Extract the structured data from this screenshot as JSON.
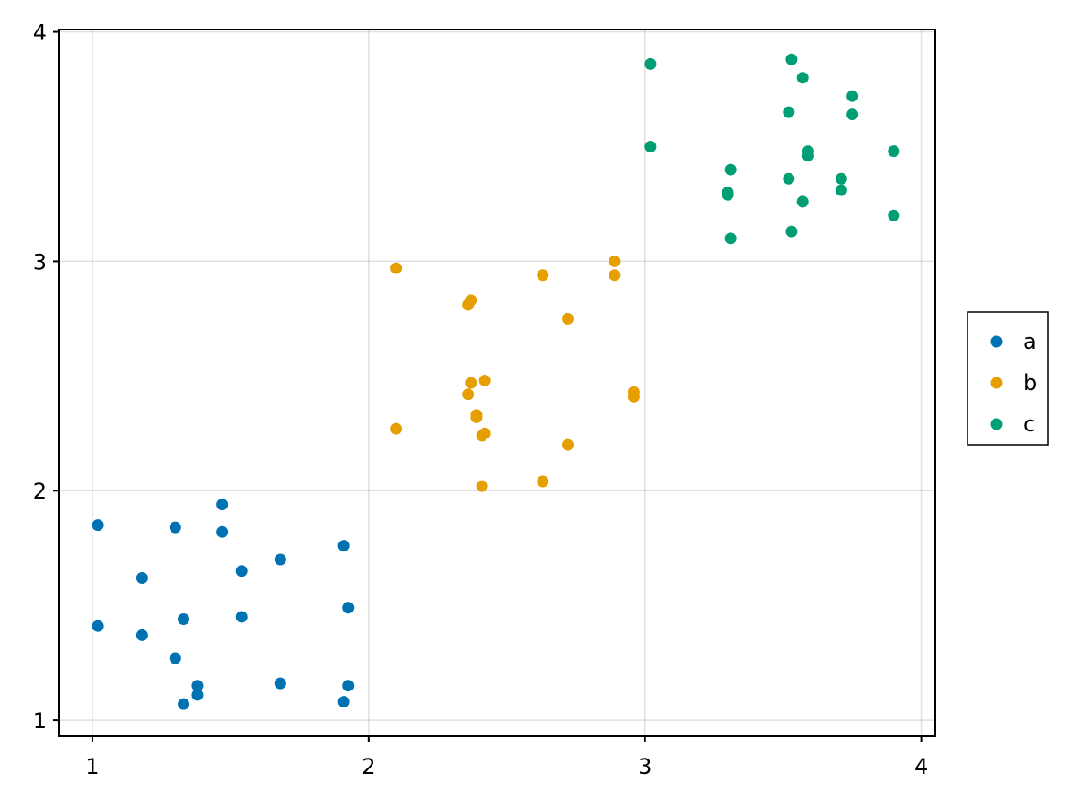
{
  "chart_data": {
    "type": "scatter",
    "title": "",
    "xlabel": "",
    "ylabel": "",
    "xlim": [
      0.88,
      4.05
    ],
    "ylim": [
      0.93,
      4.01
    ],
    "xticks": [
      1,
      2,
      3,
      4
    ],
    "yticks": [
      1,
      2,
      3,
      4
    ],
    "grid": true,
    "legend_placement": "right",
    "series": [
      {
        "name": "a",
        "color": "#0072B2",
        "points": [
          [
            1.02,
            1.85
          ],
          [
            1.02,
            1.41
          ],
          [
            1.18,
            1.62
          ],
          [
            1.18,
            1.37
          ],
          [
            1.3,
            1.84
          ],
          [
            1.3,
            1.27
          ],
          [
            1.33,
            1.44
          ],
          [
            1.33,
            1.07
          ],
          [
            1.38,
            1.15
          ],
          [
            1.38,
            1.11
          ],
          [
            1.47,
            1.94
          ],
          [
            1.47,
            1.82
          ],
          [
            1.54,
            1.65
          ],
          [
            1.54,
            1.45
          ],
          [
            1.68,
            1.7
          ],
          [
            1.68,
            1.16
          ],
          [
            1.91,
            1.76
          ],
          [
            1.91,
            1.08
          ],
          [
            1.925,
            1.49
          ],
          [
            1.925,
            1.15
          ]
        ]
      },
      {
        "name": "b",
        "color": "#E69F00",
        "points": [
          [
            2.1,
            2.97
          ],
          [
            2.1,
            2.27
          ],
          [
            2.36,
            2.81
          ],
          [
            2.36,
            2.42
          ],
          [
            2.37,
            2.83
          ],
          [
            2.37,
            2.47
          ],
          [
            2.39,
            2.33
          ],
          [
            2.39,
            2.32
          ],
          [
            2.41,
            2.24
          ],
          [
            2.41,
            2.02
          ],
          [
            2.42,
            2.48
          ],
          [
            2.42,
            2.25
          ],
          [
            2.63,
            2.94
          ],
          [
            2.63,
            2.04
          ],
          [
            2.72,
            2.75
          ],
          [
            2.72,
            2.2
          ],
          [
            2.89,
            3.0
          ],
          [
            2.89,
            2.94
          ],
          [
            2.96,
            2.43
          ],
          [
            2.96,
            2.41
          ]
        ]
      },
      {
        "name": "c",
        "color": "#009E73",
        "points": [
          [
            3.02,
            3.86
          ],
          [
            3.02,
            3.5
          ],
          [
            3.3,
            3.3
          ],
          [
            3.3,
            3.29
          ],
          [
            3.31,
            3.4
          ],
          [
            3.31,
            3.1
          ],
          [
            3.52,
            3.65
          ],
          [
            3.52,
            3.36
          ],
          [
            3.53,
            3.88
          ],
          [
            3.53,
            3.13
          ],
          [
            3.57,
            3.8
          ],
          [
            3.57,
            3.26
          ],
          [
            3.59,
            3.48
          ],
          [
            3.59,
            3.46
          ],
          [
            3.71,
            3.36
          ],
          [
            3.71,
            3.31
          ],
          [
            3.75,
            3.72
          ],
          [
            3.75,
            3.64
          ],
          [
            3.9,
            3.48
          ],
          [
            3.9,
            3.2
          ]
        ]
      }
    ]
  }
}
